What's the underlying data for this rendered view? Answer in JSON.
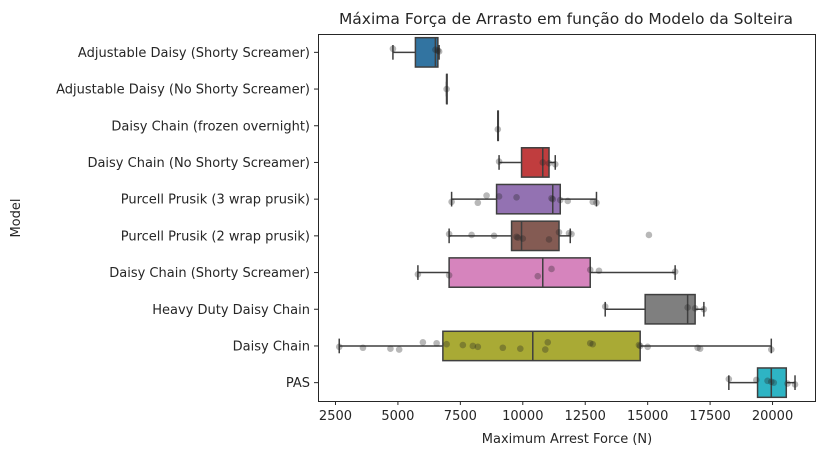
{
  "chart_data": {
    "type": "box",
    "title": "Máxima Força de Arrasto em função do Modelo da Solteira",
    "xlabel": "Maximum Arrest Force (N)",
    "ylabel": "Model",
    "xlim": [
      1800,
      21700
    ],
    "xticks": [
      2500,
      5000,
      7500,
      10000,
      12500,
      15000,
      17500,
      20000
    ],
    "xtick_labels": [
      "2500",
      "5000",
      "7500",
      "10000",
      "12500",
      "15000",
      "17500",
      "20000"
    ],
    "grid": false,
    "categories": [
      "Adjustable Daisy (Shorty Screamer)",
      "Adjustable Daisy (No Shorty Screamer)",
      "Daisy Chain (frozen overnight)",
      "Daisy Chain (No Shorty Screamer)",
      "Purcell Prusik (3 wrap prusik)",
      "Purcell Prusik (2 wrap prusik)",
      "Daisy Chain (Shorty Screamer)",
      "Heavy Duty Daisy Chain",
      "Daisy Chain",
      "PAS"
    ],
    "boxes": [
      {
        "color": "#3274a1",
        "whislo": 4800,
        "q1": 5700,
        "med": 6500,
        "q3": 6600,
        "whishi": 6650,
        "points": [
          4800,
          6500,
          6600,
          6650
        ]
      },
      {
        "color": "#e1812c",
        "whislo": 6950,
        "q1": 6950,
        "med": 6950,
        "q3": 6950,
        "whishi": 6950,
        "points": [
          6950
        ]
      },
      {
        "color": "#3a923a",
        "whislo": 9000,
        "q1": 9000,
        "med": 9000,
        "q3": 9000,
        "whishi": 9000,
        "points": [
          9000
        ]
      },
      {
        "color": "#c03d3e",
        "whislo": 9050,
        "q1": 9950,
        "med": 10800,
        "q3": 11050,
        "whishi": 11300,
        "points": [
          9050,
          10800,
          11050,
          11300
        ]
      },
      {
        "color": "#9372b2",
        "whislo": 7150,
        "q1": 8950,
        "med": 11200,
        "q3": 11500,
        "whishi": 12950,
        "points": [
          7150,
          8200,
          8550,
          9050,
          9750,
          11150,
          11200,
          11500,
          11800,
          12800,
          12950
        ]
      },
      {
        "color": "#845b53",
        "whislo": 7050,
        "q1": 9550,
        "med": 9950,
        "q3": 11450,
        "whishi": 11900,
        "points": [
          7050,
          7950,
          8850,
          9750,
          9800,
          10000,
          11050,
          11450,
          11850,
          11950,
          15050
        ]
      },
      {
        "color": "#d684bd",
        "whislo": 5800,
        "q1": 7050,
        "med": 10800,
        "q3": 12700,
        "whishi": 16100,
        "points": [
          5800,
          7050,
          10600,
          11150,
          12700,
          13050,
          16100
        ]
      },
      {
        "color": "#7f7f7f",
        "whislo": 13300,
        "q1": 14900,
        "med": 16600,
        "q3": 16900,
        "whishi": 17250,
        "points": [
          13300,
          16600,
          16900,
          17250
        ]
      },
      {
        "color": "#a9aa35",
        "whislo": 2650,
        "q1": 6800,
        "med": 10400,
        "q3": 14700,
        "whishi": 19950,
        "points": [
          2650,
          3600,
          4700,
          5050,
          6000,
          6550,
          6950,
          7600,
          8000,
          8200,
          9200,
          9900,
          10900,
          11000,
          12700,
          12800,
          14650,
          14700,
          15000,
          17000,
          17100,
          19950
        ]
      },
      {
        "color": "#2eb4c4",
        "whislo": 18250,
        "q1": 19400,
        "med": 19950,
        "q3": 20550,
        "whishi": 20900,
        "points": [
          18250,
          19350,
          19800,
          19950,
          20050,
          20600,
          20900
        ]
      }
    ]
  }
}
